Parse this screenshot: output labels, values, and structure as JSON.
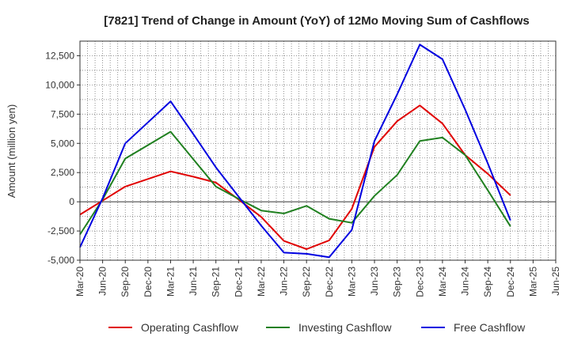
{
  "chart_data": {
    "type": "line",
    "title": "[7821]  Trend of Change in Amount (YoY) of 12Mo Moving Sum of Cashflows",
    "xlabel": "",
    "ylabel": "Amount (million yen)",
    "ylim": [
      -5000,
      13750
    ],
    "yticks": [
      -5000,
      -2500,
      0,
      2500,
      5000,
      7500,
      10000,
      12500
    ],
    "ytick_labels": [
      "-5,000",
      "-2,500",
      "0",
      "2,500",
      "5,000",
      "7,500",
      "10,000",
      "12,500"
    ],
    "grid": true,
    "legend_position": "bottom",
    "categories": [
      "Mar-20",
      "Jun-20",
      "Sep-20",
      "Dec-20",
      "Mar-21",
      "Jun-21",
      "Sep-21",
      "Dec-21",
      "Mar-22",
      "Jun-22",
      "Sep-22",
      "Dec-22",
      "Mar-23",
      "Jun-23",
      "Sep-23",
      "Dec-23",
      "Mar-24",
      "Jun-24",
      "Sep-24",
      "Dec-24",
      "Mar-25",
      "Jun-25"
    ],
    "series": [
      {
        "name": "Operating Cashflow",
        "color": "#e00000",
        "values": [
          -1100,
          100,
          1300,
          1950,
          2600,
          2150,
          1650,
          200,
          -1300,
          -3350,
          -4050,
          -3300,
          -600,
          4700,
          6900,
          8250,
          6700,
          4000,
          2400,
          550,
          null,
          null
        ]
      },
      {
        "name": "Investing Cashflow",
        "color": "#208020",
        "values": [
          -2800,
          200,
          3700,
          4850,
          6000,
          3650,
          1300,
          250,
          -750,
          -1000,
          -350,
          -1450,
          -1800,
          500,
          2300,
          5200,
          5500,
          4000,
          1000,
          -2100,
          null,
          null
        ]
      },
      {
        "name": "Free Cashflow",
        "color": "#0000e0",
        "values": [
          -3900,
          300,
          5000,
          6800,
          8600,
          5800,
          2950,
          450,
          -2050,
          -4350,
          -4450,
          -4750,
          -2400,
          5200,
          9200,
          13450,
          12200,
          7900,
          3300,
          -1600,
          null,
          null
        ]
      }
    ]
  }
}
